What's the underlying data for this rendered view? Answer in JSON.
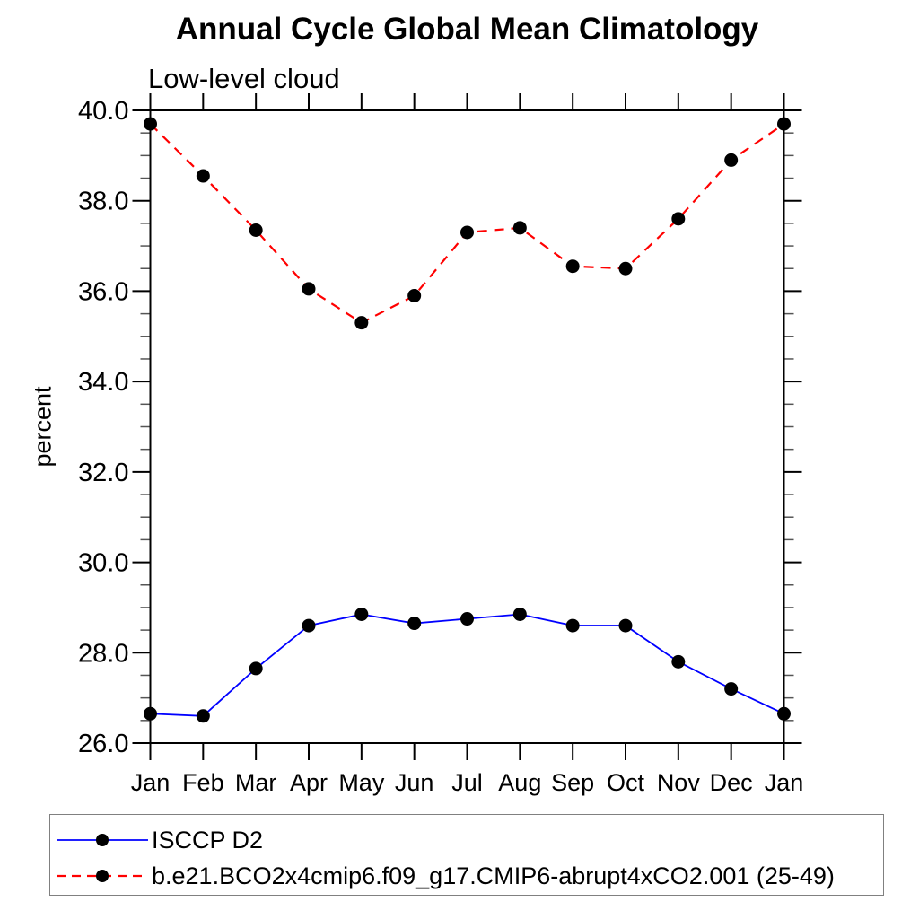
{
  "chart": {
    "title": "Annual Cycle Global Mean Climatology",
    "subtitle": "Low-level cloud",
    "ylabel": "percent"
  },
  "chart_data": {
    "type": "line",
    "title": "Annual Cycle Global Mean Climatology",
    "subtitle": "Low-level cloud",
    "xlabel": "",
    "ylabel": "percent",
    "categories": [
      "Jan",
      "Feb",
      "Mar",
      "Apr",
      "May",
      "Jun",
      "Jul",
      "Aug",
      "Sep",
      "Oct",
      "Nov",
      "Dec",
      "Jan"
    ],
    "ylim": [
      26.0,
      40.0
    ],
    "y_major_ticks": [
      26,
      28,
      30,
      32,
      34,
      36,
      38,
      40
    ],
    "y_tick_labels": [
      "26.0",
      "28.0",
      "30.0",
      "32.0",
      "34.0",
      "36.0",
      "38.0",
      "40.0"
    ],
    "y_minor_step": 0.5,
    "grid": false,
    "legend_position": "bottom-box",
    "marker": "filled-circle",
    "marker_color": "#000000",
    "series": [
      {
        "name": "ISCCP D2",
        "color": "#0000ff",
        "line_style": "solid",
        "values": [
          26.65,
          26.6,
          27.65,
          28.6,
          28.85,
          28.65,
          28.75,
          28.85,
          28.6,
          28.6,
          27.8,
          27.2,
          26.65
        ]
      },
      {
        "name": "b.e21.BCO2x4cmip6.f09_g17.CMIP6-abrupt4xCO2.001 (25-49)",
        "color": "#ff0000",
        "line_style": "dashed",
        "values": [
          39.7,
          38.55,
          37.35,
          36.05,
          35.3,
          35.9,
          37.3,
          37.4,
          36.55,
          36.5,
          37.6,
          38.9,
          39.7
        ]
      }
    ]
  }
}
